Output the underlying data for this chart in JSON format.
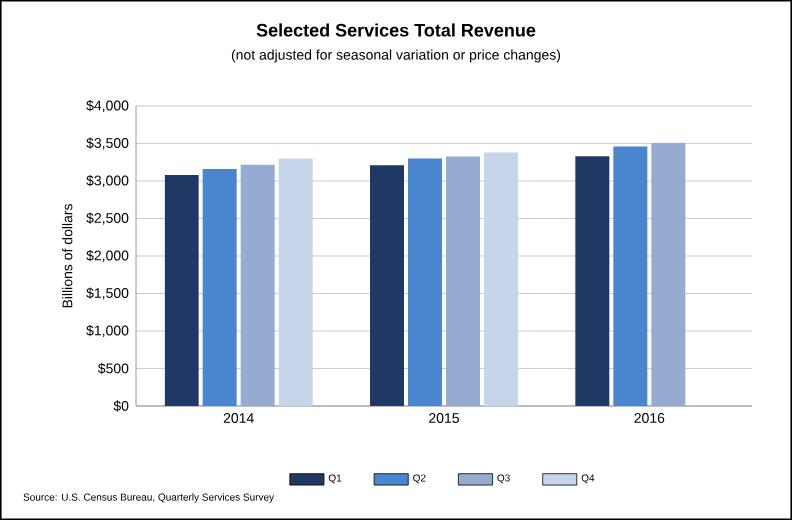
{
  "chart_data": {
    "type": "bar",
    "title": "Selected Services Total Revenue",
    "subtitle": "(not adjusted for seasonal variation or price changes)",
    "ylabel": "Billions of dollars",
    "categories": [
      "2014",
      "2015",
      "2016"
    ],
    "series": [
      {
        "name": "Q1",
        "color": "#1f3864",
        "values": [
          3080,
          3210,
          3330
        ]
      },
      {
        "name": "Q2",
        "color": "#4a86d0",
        "values": [
          3160,
          3300,
          3460
        ]
      },
      {
        "name": "Q3",
        "color": "#95acd0",
        "values": [
          3215,
          3325,
          3510
        ]
      },
      {
        "name": "Q4",
        "color": "#c5d5ea",
        "values": [
          3300,
          3380,
          null
        ]
      }
    ],
    "ylim": [
      0,
      4000
    ],
    "yticks": [
      {
        "value": 0,
        "label": "$0"
      },
      {
        "value": 500,
        "label": "$500"
      },
      {
        "value": 1000,
        "label": "$1,000"
      },
      {
        "value": 1500,
        "label": "$1,500"
      },
      {
        "value": 2000,
        "label": "$2,000"
      },
      {
        "value": 2500,
        "label": "$2,500"
      },
      {
        "value": 3000,
        "label": "$3,000"
      },
      {
        "value": 3500,
        "label": "$3,500"
      },
      {
        "value": 4000,
        "label": "$4,000"
      }
    ],
    "grid": "y",
    "legend": "bottom",
    "annotations": [
      "Source:  U.S. Census Bureau, Quarterly  Services  Survey"
    ]
  }
}
